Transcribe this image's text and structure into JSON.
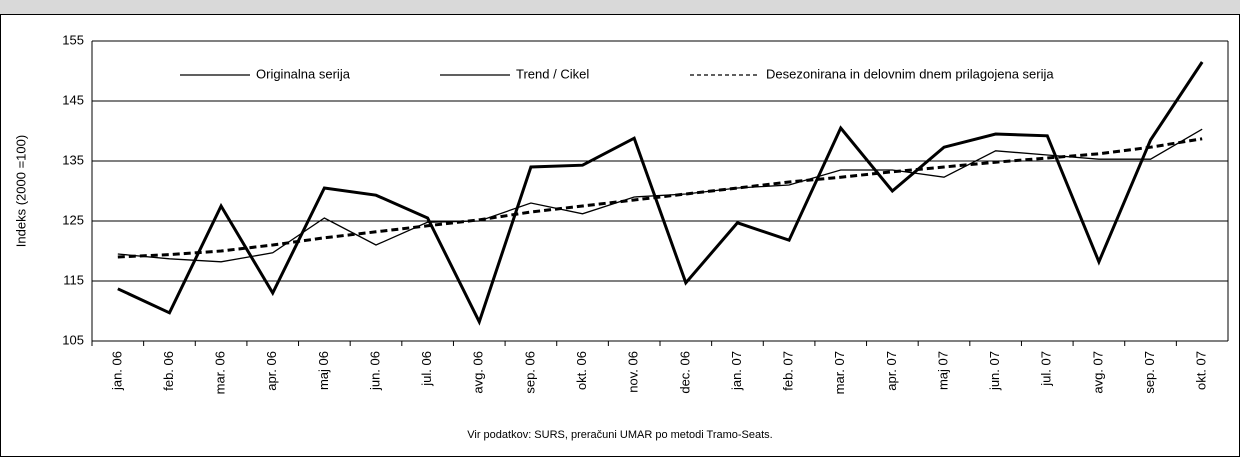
{
  "chart_data": {
    "type": "line",
    "y_label": "Indeks (2000 =100)",
    "note": "Vir podatkov: SURS, preračuni UMAR po metodi Tramo-Seats.",
    "categories": [
      "jan. 06",
      "feb. 06",
      "mar. 06",
      "apr. 06",
      "maj 06",
      "jun. 06",
      "jul. 06",
      "avg. 06",
      "sep. 06",
      "okt. 06",
      "nov. 06",
      "dec. 06",
      "jan. 07",
      "feb. 07",
      "mar. 07",
      "apr. 07",
      "maj 07",
      "jun. 07",
      "jul. 07",
      "avg. 07",
      "sep. 07",
      "okt. 07"
    ],
    "series": [
      {
        "name": "Originalna serija",
        "color": "#000000",
        "width": 3,
        "dash": false,
        "values": [
          113.7,
          109.7,
          127.5,
          113,
          130.5,
          129.3,
          125.5,
          108.2,
          134,
          134.3,
          138.8,
          114.7,
          124.7,
          121.8,
          140.5,
          130,
          137.3,
          139.5,
          139.2,
          118.2,
          138.5,
          151.5
        ]
      },
      {
        "name": "Trend / Cikel",
        "color": "#000000",
        "width": 1.3,
        "dash": false,
        "values": [
          119.5,
          118.7,
          118.2,
          119.7,
          125.5,
          121,
          124.8,
          125,
          128,
          126.2,
          129,
          129.5,
          130.5,
          131,
          133.5,
          133.5,
          132.3,
          136.7,
          136,
          135.3,
          135.3,
          140.3
        ]
      },
      {
        "name": "Desezonirana in delovnim dnem prilagojena serija",
        "color": "#000000",
        "width": 3,
        "dash": true,
        "values": [
          119,
          119.4,
          120,
          121,
          122.2,
          123.2,
          124.2,
          125.2,
          126.5,
          127.5,
          128.5,
          129.5,
          130.5,
          131.5,
          132.3,
          133.2,
          134,
          134.8,
          135.5,
          136.2,
          137.3,
          138.7
        ]
      }
    ],
    "ylim": [
      105,
      155
    ],
    "yticks": [
      105,
      115,
      125,
      135,
      145,
      155
    ],
    "grid": true
  }
}
